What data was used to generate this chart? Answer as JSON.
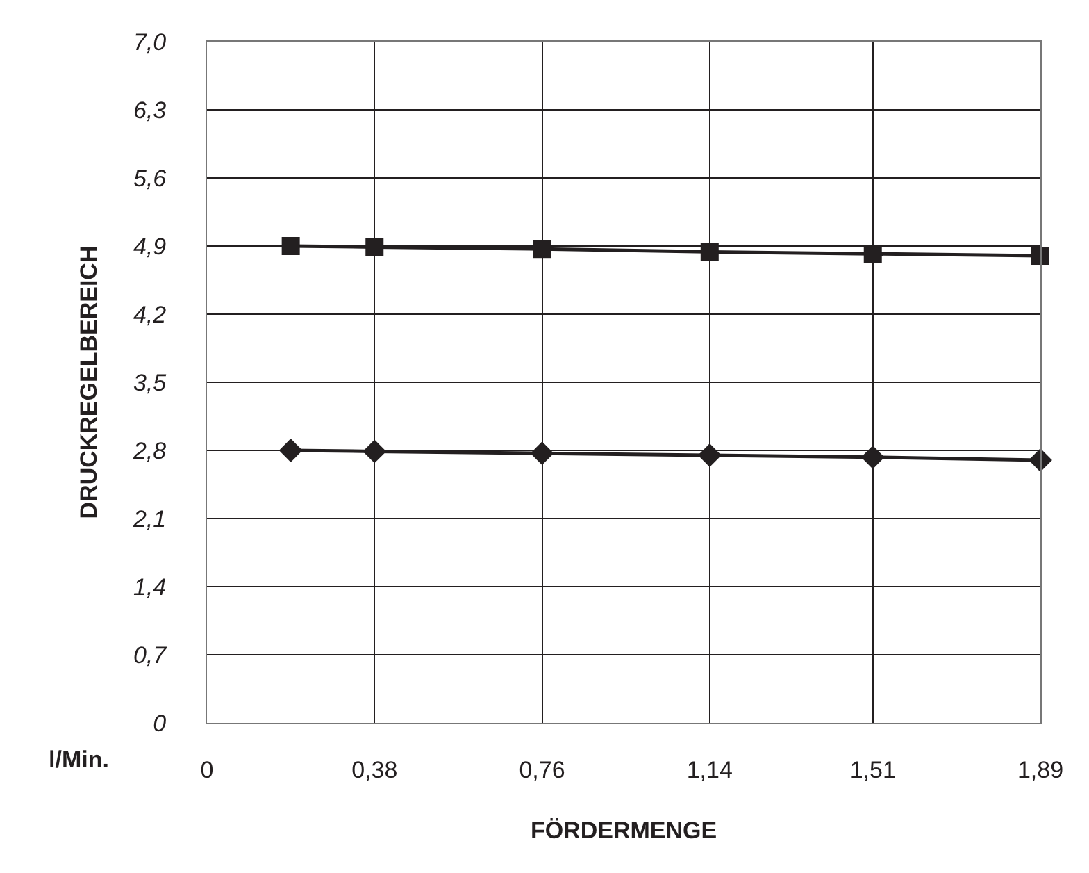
{
  "chart_data": {
    "type": "line",
    "xlabel": "FÖRDERMENGE",
    "ylabel": "DRUCKREGELBEREICH",
    "annotations": [
      "l/Min."
    ],
    "x": [
      0.19,
      0.38,
      0.76,
      1.14,
      1.51,
      1.89
    ],
    "series": [
      {
        "color": "#231f20",
        "marker": "square",
        "values": [
          4.9,
          4.89,
          4.87,
          4.84,
          4.82,
          4.8
        ]
      },
      {
        "color": "#231f20",
        "marker": "diamond",
        "values": [
          2.8,
          2.79,
          2.77,
          2.75,
          2.73,
          2.7
        ]
      }
    ],
    "xlim": [
      0,
      1.89
    ],
    "xticks": [
      {
        "value": 0,
        "label": "0"
      },
      {
        "value": 0.38,
        "label": "0,38"
      },
      {
        "value": 0.76,
        "label": "0,76"
      },
      {
        "value": 1.14,
        "label": "1,14"
      },
      {
        "value": 1.51,
        "label": "1,51"
      },
      {
        "value": 1.89,
        "label": "1,89"
      }
    ],
    "ylim": [
      0,
      7
    ],
    "yticks": [
      {
        "value": 0,
        "label": "0"
      },
      {
        "value": 0.7,
        "label": "0,7"
      },
      {
        "value": 1.4,
        "label": "1,4"
      },
      {
        "value": 2.1,
        "label": "2,1"
      },
      {
        "value": 2.8,
        "label": "2,8"
      },
      {
        "value": 3.5,
        "label": "3,5"
      },
      {
        "value": 4.2,
        "label": "4,2"
      },
      {
        "value": 4.9,
        "label": "4,9"
      },
      {
        "value": 5.6,
        "label": "5,6"
      },
      {
        "value": 6.3,
        "label": "6,3"
      },
      {
        "value": 7,
        "label": "7,0"
      }
    ],
    "grid": true,
    "line_style": "solid"
  }
}
